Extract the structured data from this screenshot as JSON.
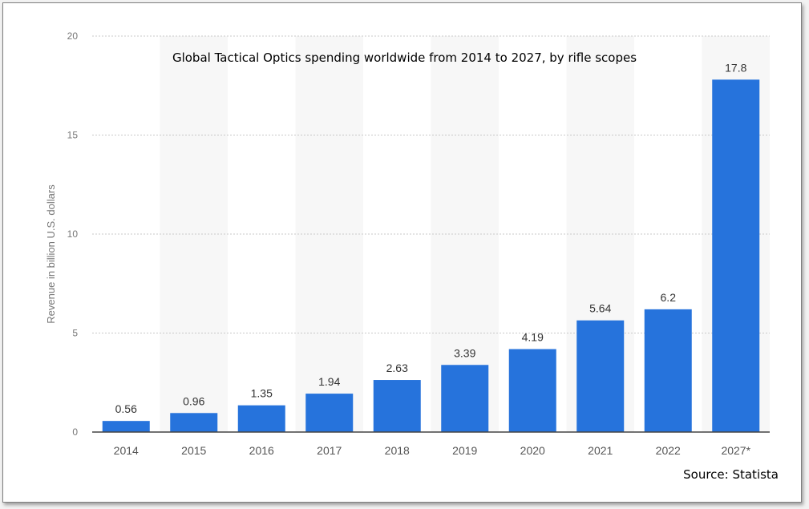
{
  "chart_data": {
    "type": "bar",
    "title": "Global Tactical Optics spending worldwide from 2014 to 2027, by rifle scopes",
    "xlabel": "",
    "ylabel": "Revenue in billion U.S. dollars",
    "categories": [
      "2014",
      "2015",
      "2016",
      "2017",
      "2018",
      "2019",
      "2020",
      "2021",
      "2022",
      "2027*"
    ],
    "values": [
      0.56,
      0.96,
      1.35,
      1.94,
      2.63,
      3.39,
      4.19,
      5.64,
      6.2,
      17.8
    ],
    "value_labels": [
      "0.56",
      "0.96",
      "1.35",
      "1.94",
      "2.63",
      "3.39",
      "4.19",
      "5.64",
      "6.2",
      "17.8"
    ],
    "ylim": [
      0,
      20
    ],
    "yticks": [
      "0",
      "5",
      "10",
      "15",
      "20"
    ],
    "grid": true,
    "bar_color": "#2673dc",
    "source": "Source: Statista"
  }
}
